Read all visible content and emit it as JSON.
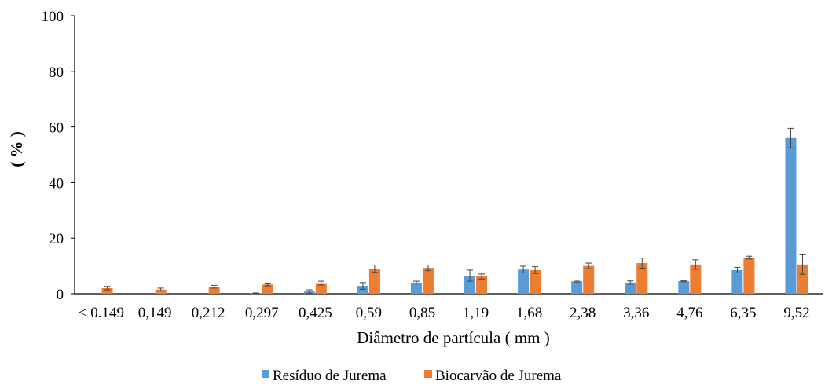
{
  "chart_data": {
    "type": "bar",
    "title": "",
    "xlabel": "Diâmetro de partícula ( mm )",
    "ylabel": "( % )",
    "ylim": [
      0,
      100
    ],
    "yticks": [
      0,
      20,
      40,
      60,
      80,
      100
    ],
    "grid": false,
    "legend_position": "bottom",
    "categories": [
      "≤ 0.149",
      "0,149",
      "0,212",
      "0,297",
      "0,425",
      "0,59",
      "0,85",
      "1,19",
      "1,68",
      "2,38",
      "3,36",
      "4,76",
      "6,35",
      "9,52"
    ],
    "series": [
      {
        "name": "Resíduo de Jurema",
        "color": "#5B9BD5",
        "values": [
          0,
          0,
          0,
          0.2,
          0.8,
          2.8,
          4.0,
          6.5,
          8.7,
          4.5,
          4.0,
          4.5,
          8.5,
          56.0
        ],
        "errors": [
          0,
          0,
          0,
          0.1,
          0.6,
          1.2,
          0.5,
          2.0,
          1.2,
          0.3,
          0.6,
          0.2,
          1.0,
          3.5
        ]
      },
      {
        "name": "Biocarvão de Jurema",
        "color": "#ED7D31",
        "values": [
          2.0,
          1.5,
          2.5,
          3.3,
          3.8,
          9.0,
          9.3,
          6.2,
          8.5,
          10.0,
          11.0,
          10.5,
          13.0,
          10.5
        ],
        "errors": [
          0.6,
          0.5,
          0.5,
          0.5,
          0.7,
          1.3,
          1.0,
          0.9,
          1.2,
          1.0,
          1.8,
          1.7,
          0.5,
          3.5
        ]
      }
    ]
  }
}
